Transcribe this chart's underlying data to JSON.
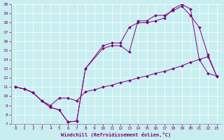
{
  "xlabel": "Windchill (Refroidissement éolien,°C)",
  "bg_color": "#c8eef0",
  "line_color": "#800080",
  "grid_color": "#ffffff",
  "xlim": [
    -0.5,
    23.5
  ],
  "ylim": [
    7,
    20
  ],
  "xticks": [
    0,
    1,
    2,
    3,
    4,
    5,
    6,
    7,
    8,
    9,
    10,
    11,
    12,
    13,
    14,
    15,
    16,
    17,
    18,
    19,
    20,
    21,
    22,
    23
  ],
  "yticks": [
    7,
    8,
    9,
    10,
    11,
    12,
    13,
    14,
    15,
    16,
    17,
    18,
    19,
    20
  ],
  "line1_x": [
    0,
    1,
    2,
    3,
    4,
    5,
    6,
    7,
    8,
    10,
    11,
    12,
    13,
    14,
    15,
    16,
    17,
    18,
    19,
    20,
    21,
    22,
    23
  ],
  "line1_y": [
    11,
    10.8,
    10.4,
    9.5,
    8.8,
    8.5,
    7.2,
    7.3,
    13.0,
    15.5,
    15.8,
    15.8,
    17.5,
    18.0,
    18.0,
    18.2,
    18.5,
    19.5,
    20.0,
    19.5,
    14.0,
    12.5,
    12.2
  ],
  "line2_x": [
    0,
    1,
    2,
    3,
    4,
    5,
    6,
    7,
    8,
    10,
    11,
    12,
    13,
    14,
    15,
    16,
    17,
    18,
    19,
    20,
    21,
    22,
    23
  ],
  "line2_y": [
    11,
    10.8,
    10.4,
    9.5,
    8.8,
    8.5,
    7.2,
    7.3,
    13.0,
    15.2,
    15.5,
    15.5,
    14.8,
    18.2,
    18.2,
    18.8,
    18.8,
    19.3,
    19.8,
    18.8,
    17.5,
    14.5,
    12.2
  ],
  "line3_x": [
    0,
    1,
    2,
    3,
    4,
    5,
    6,
    7,
    8,
    9,
    10,
    11,
    12,
    13,
    14,
    15,
    16,
    17,
    18,
    19,
    20,
    21,
    22,
    23
  ],
  "line3_y": [
    11,
    10.8,
    10.4,
    9.5,
    9.0,
    9.8,
    9.8,
    9.5,
    10.5,
    10.7,
    11.0,
    11.2,
    11.5,
    11.7,
    12.0,
    12.2,
    12.5,
    12.7,
    13.0,
    13.3,
    13.7,
    14.0,
    14.3,
    12.2
  ]
}
